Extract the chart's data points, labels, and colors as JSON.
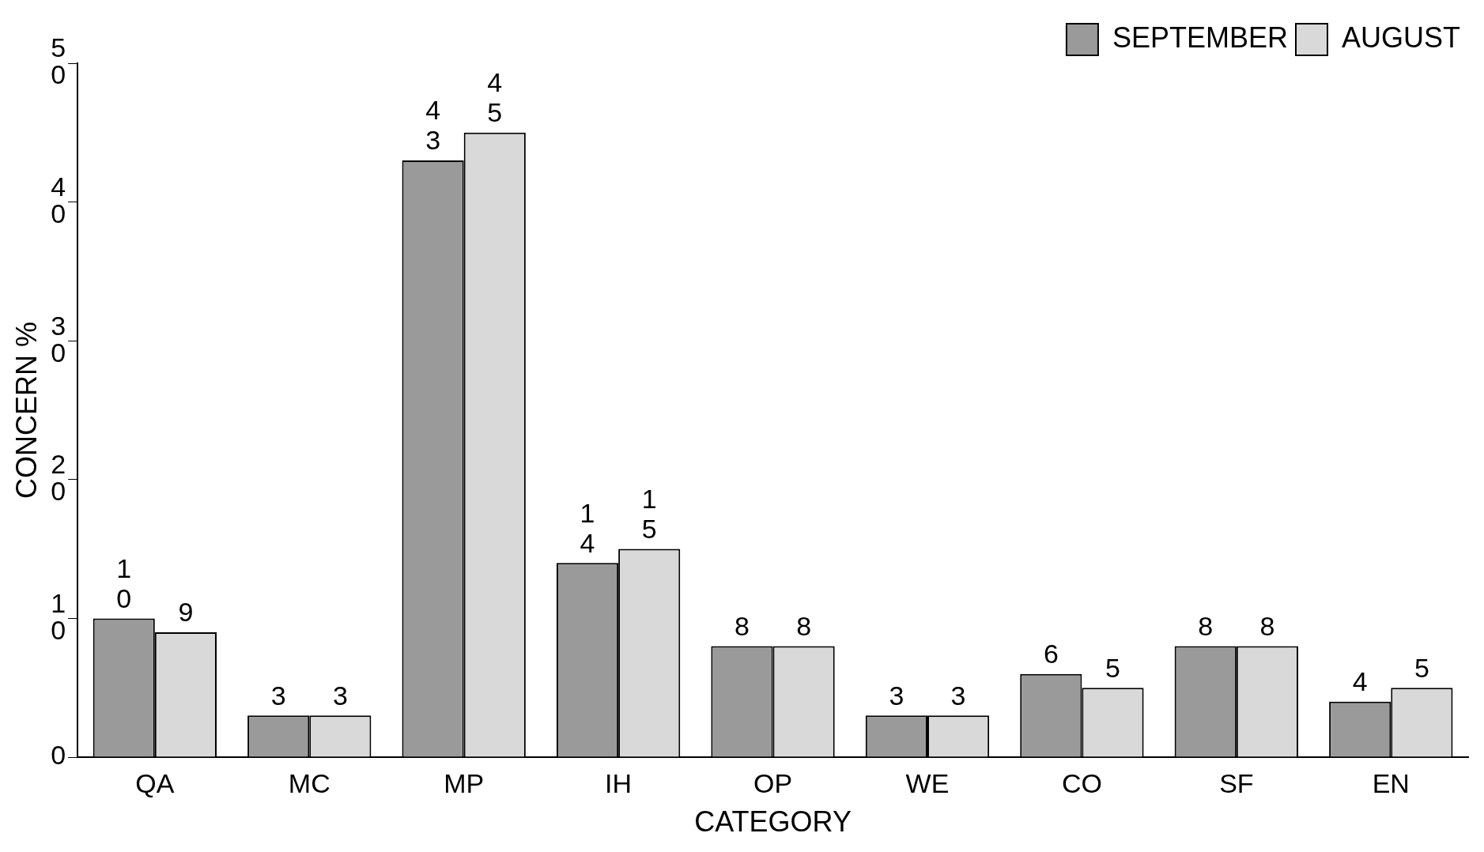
{
  "chart_data": {
    "type": "bar",
    "xlabel": "CATEGORY",
    "ylabel": "CONCERN %",
    "categories": [
      "QA",
      "MC",
      "MP",
      "IH",
      "OP",
      "WE",
      "CO",
      "SF",
      "EN"
    ],
    "series": [
      {
        "name": "SEPTEMBER",
        "color": "#9a9a9a",
        "values": [
          10,
          3,
          43,
          14,
          8,
          3,
          6,
          8,
          4
        ]
      },
      {
        "name": "AUGUST",
        "color": "#d9d9d9",
        "values": [
          9,
          3,
          45,
          15,
          8,
          3,
          5,
          8,
          5
        ]
      }
    ],
    "ylim": [
      0,
      50
    ],
    "yticks": [
      0,
      10,
      20,
      30,
      40,
      50
    ],
    "grid": false,
    "legend": "top right",
    "data_labels": true
  }
}
